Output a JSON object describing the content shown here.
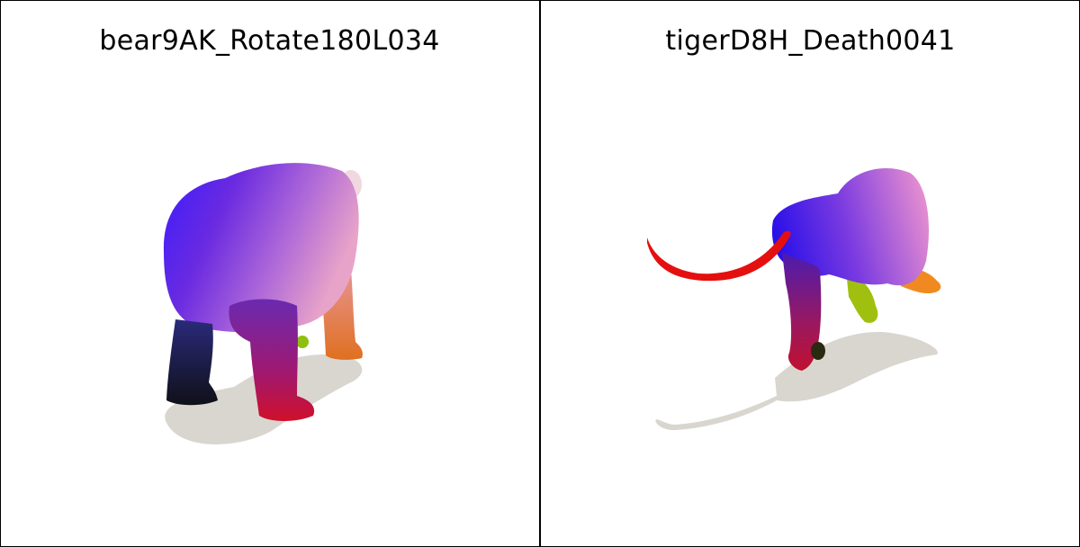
{
  "panels": [
    {
      "title": "bear9AK_Rotate180L034",
      "subject": "bear"
    },
    {
      "title": "tigerD8H_Death0041",
      "subject": "tiger"
    }
  ],
  "colors": {
    "shadow": "#d9d6cf",
    "border": "#000000",
    "background": "#ffffff"
  }
}
